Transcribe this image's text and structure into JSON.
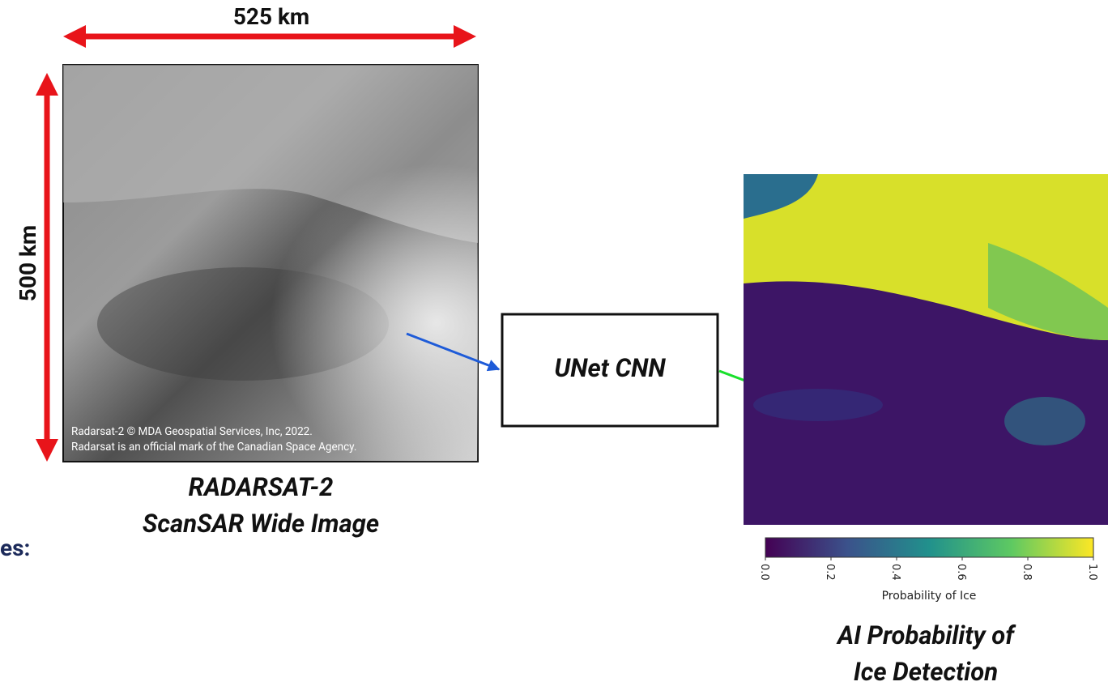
{
  "header": {
    "width_label": "525 km",
    "height_label": "500 km"
  },
  "sar_image": {
    "credit": [
      "Radarsat-2 © MDA Geospatial Services, Inc, 2022.",
      "Radarsat is an official mark of the Canadian Space Agency."
    ],
    "caption": [
      "RADARSAT-2",
      "ScanSAR Wide Image"
    ]
  },
  "model": {
    "label": "UNet CNN"
  },
  "output": {
    "colorbar_ticks": [
      "0.0",
      "0.2",
      "0.4",
      "0.6",
      "0.8",
      "1.0"
    ],
    "colorbar_label": "Probability of Ice",
    "caption": [
      "AI Probability of",
      "Ice Detection"
    ]
  },
  "side_text": "es:"
}
